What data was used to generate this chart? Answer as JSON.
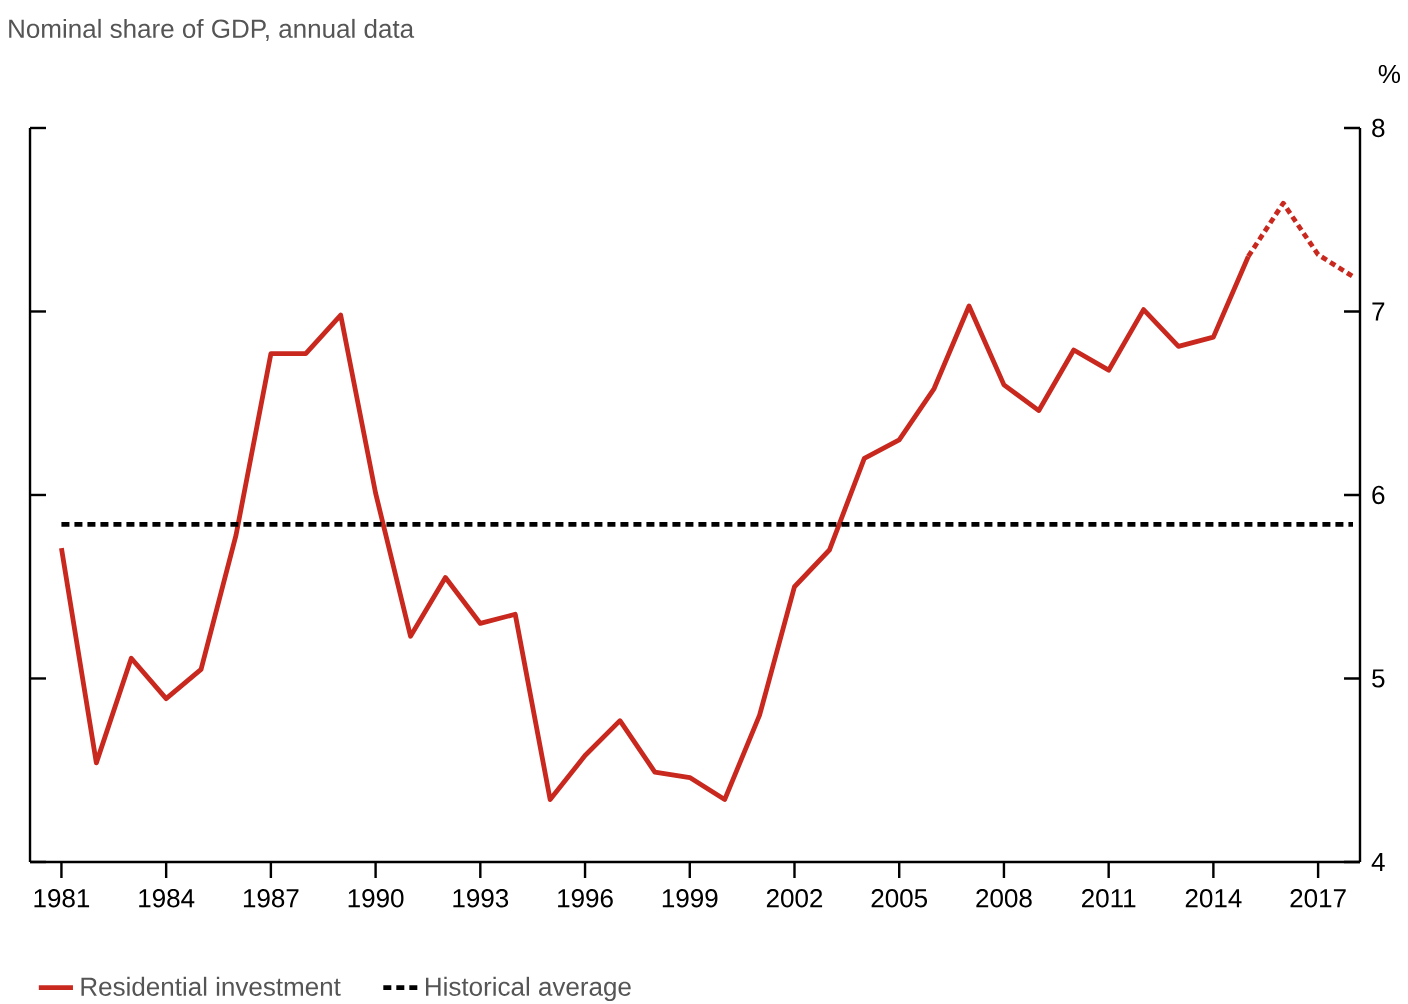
{
  "chart_data": {
    "type": "line",
    "title": "Nominal share of GDP, annual data",
    "ylabel": "%",
    "xlim": [
      1980.1,
      2018.2
    ],
    "xticks": [
      1981,
      1984,
      1987,
      1990,
      1993,
      1996,
      1999,
      2002,
      2005,
      2008,
      2011,
      2014,
      2017
    ],
    "ylim": [
      4,
      8
    ],
    "yticks": [
      4,
      5,
      6,
      7,
      8
    ],
    "legend": "bottom left",
    "series": [
      {
        "name": "Residential investment",
        "color": "#c8281e",
        "line_style": "solid",
        "x": [
          1981,
          1982,
          1983,
          1984,
          1985,
          1986,
          1987,
          1988,
          1989,
          1990,
          1991,
          1992,
          1993,
          1994,
          1995,
          1996,
          1997,
          1998,
          1999,
          2000,
          2001,
          2002,
          2003,
          2004,
          2005,
          2006,
          2007,
          2008,
          2009,
          2010,
          2011,
          2012,
          2013,
          2014,
          2015
        ],
        "values": [
          5.71,
          4.54,
          5.11,
          4.89,
          5.05,
          5.78,
          6.77,
          6.77,
          6.98,
          6.01,
          5.23,
          5.55,
          5.3,
          5.35,
          4.34,
          4.58,
          4.77,
          4.49,
          4.46,
          4.34,
          4.8,
          5.5,
          5.7,
          6.2,
          6.3,
          6.58,
          7.03,
          6.6,
          6.46,
          6.79,
          6.68,
          7.01,
          6.81,
          6.86,
          7.3
        ]
      },
      {
        "color": "#c8281e",
        "line_style": "dotted",
        "x": [
          2015,
          2016,
          2017,
          2018
        ],
        "values": [
          7.3,
          7.59,
          7.31,
          7.19
        ]
      },
      {
        "name": "Historical average",
        "color": "#000000",
        "line_style": "dashed",
        "x": [
          1981,
          2018
        ],
        "values": [
          5.84,
          5.84
        ]
      }
    ]
  }
}
